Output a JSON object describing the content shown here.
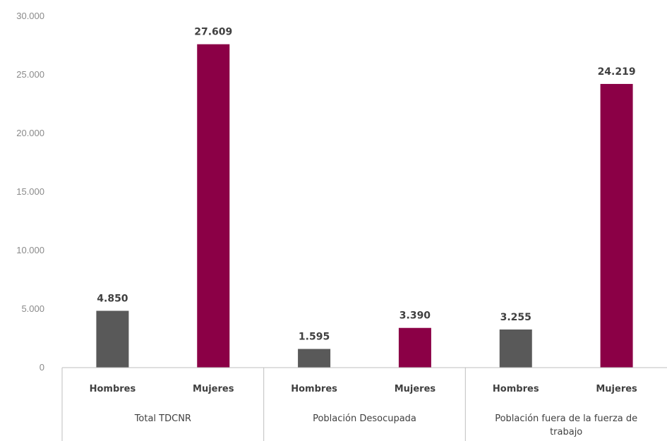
{
  "chart_data": {
    "type": "bar",
    "ylim": [
      0,
      30000
    ],
    "y_ticks": [
      "0",
      "5.000",
      "10.000",
      "15.000",
      "20.000",
      "25.000",
      "30.000"
    ],
    "grid": false,
    "legend": "none",
    "colors": {
      "Hombres": "#595959",
      "Mujeres": "#8b0046"
    },
    "groups": [
      {
        "label_lines": [
          "Total TDCNR"
        ],
        "bars": [
          {
            "category": "Hombres",
            "value": 4850,
            "label": "4.850"
          },
          {
            "category": "Mujeres",
            "value": 27609,
            "label": "27.609"
          }
        ]
      },
      {
        "label_lines": [
          "Población Desocupada"
        ],
        "bars": [
          {
            "category": "Hombres",
            "value": 1595,
            "label": "1.595"
          },
          {
            "category": "Mujeres",
            "value": 3390,
            "label": "3.390"
          }
        ]
      },
      {
        "label_lines": [
          "Población fuera de la fuerza de",
          "trabajo"
        ],
        "bars": [
          {
            "category": "Hombres",
            "value": 3255,
            "label": "3.255"
          },
          {
            "category": "Mujeres",
            "value": 24219,
            "label": "24.219"
          }
        ]
      }
    ]
  }
}
